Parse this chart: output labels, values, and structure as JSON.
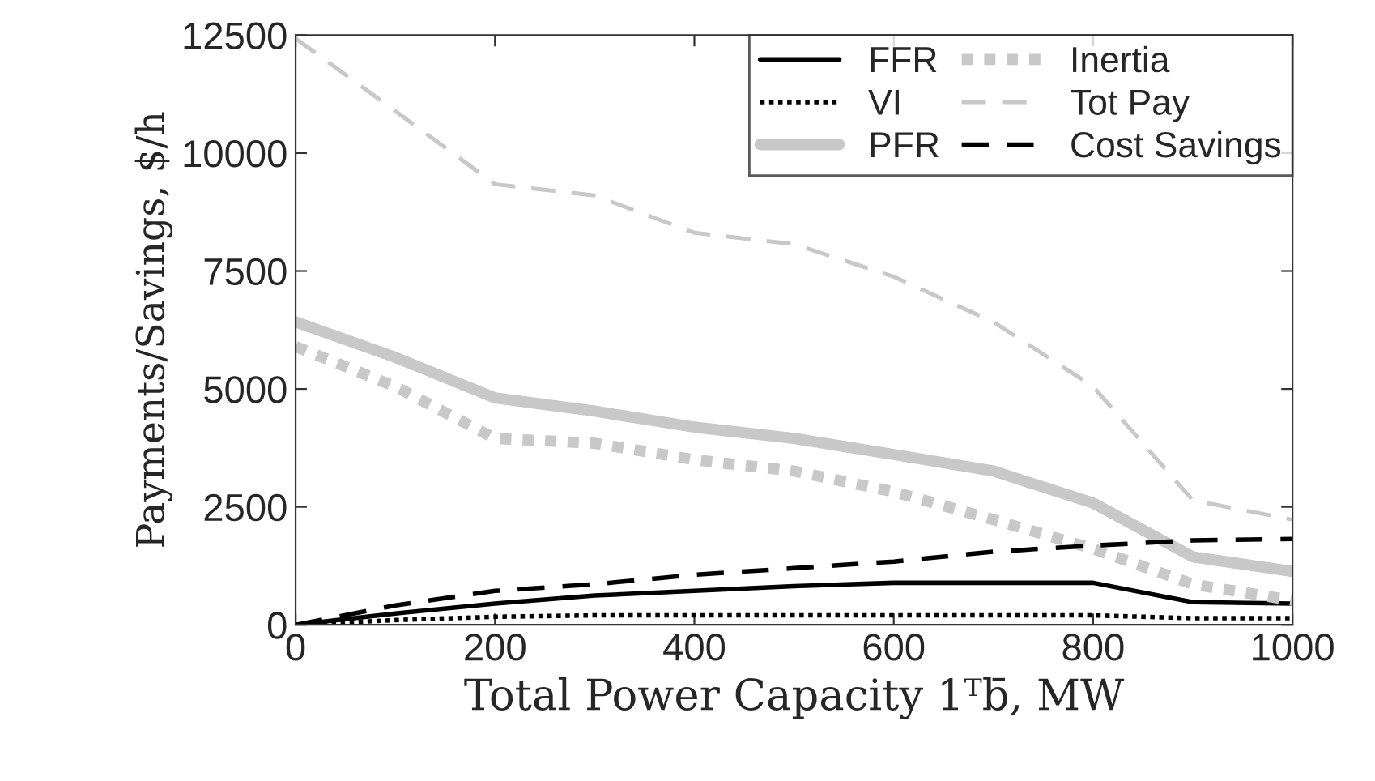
{
  "chart_data": {
    "type": "line",
    "xlabel": "Total Power Capacity 1ᵀb̄, MW",
    "ylabel": "Payments/Savings, $/h",
    "x": [
      0,
      100,
      200,
      300,
      400,
      500,
      600,
      700,
      800,
      900,
      1000
    ],
    "series": [
      {
        "name": "FFR",
        "color": "#000000",
        "line_style": "solid",
        "values": [
          0,
          240,
          450,
          620,
          720,
          820,
          890,
          890,
          890,
          480,
          450
        ]
      },
      {
        "name": "VI",
        "color": "#000000",
        "line_style": "dotted",
        "values": [
          0,
          100,
          170,
          200,
          200,
          200,
          200,
          200,
          200,
          140,
          140
        ]
      },
      {
        "name": "PFR",
        "color": "#c8c8c8",
        "line_style": "solid",
        "values": [
          6420,
          5670,
          4810,
          4530,
          4190,
          3950,
          3610,
          3260,
          2580,
          1440,
          1130
        ]
      },
      {
        "name": "Inertia",
        "color": "#c8c8c8",
        "line_style": "dotted",
        "values": [
          5900,
          5050,
          3950,
          3850,
          3500,
          3260,
          2820,
          2230,
          1610,
          860,
          520
        ]
      },
      {
        "name": "Tot Pay",
        "color": "#c8c8c8",
        "line_style": "dashed",
        "values": [
          12430,
          10890,
          9340,
          9100,
          8310,
          8070,
          7380,
          6420,
          5050,
          2640,
          2230
        ]
      },
      {
        "name": "Cost Savings",
        "color": "#000000",
        "line_style": "dashed",
        "values": [
          0,
          410,
          720,
          860,
          1060,
          1200,
          1340,
          1550,
          1680,
          1790,
          1820
        ]
      }
    ],
    "xlim": [
      0,
      1000
    ],
    "xticks": [
      0,
      200,
      400,
      600,
      800,
      1000
    ],
    "ylim": [
      0,
      12500
    ],
    "yticks": [
      0,
      2500,
      5000,
      7500,
      10000,
      12500
    ],
    "grid": false,
    "legend": "top right",
    "marker": "none"
  }
}
